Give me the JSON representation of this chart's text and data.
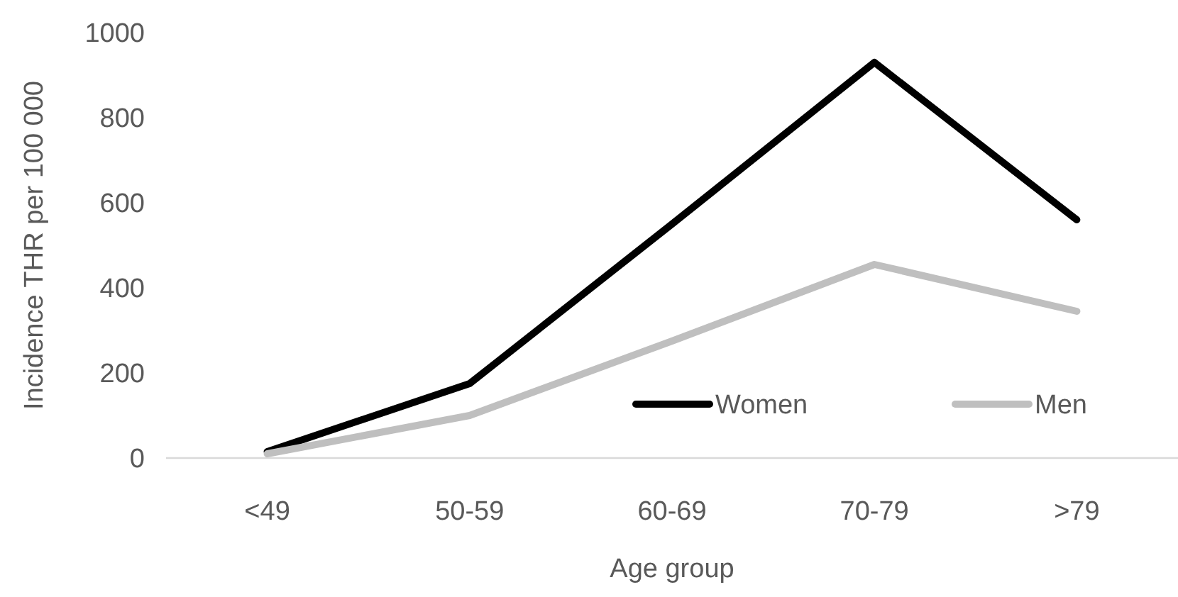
{
  "chart_data": {
    "type": "line",
    "xlabel": "Age group",
    "ylabel": "Incidence THR per 100 000",
    "categories": [
      "<49",
      "50-59",
      "60-69",
      "70-79",
      ">79"
    ],
    "series": [
      {
        "name": "Women",
        "color": "#000000",
        "values": [
          15,
          175,
          550,
          930,
          560
        ]
      },
      {
        "name": "Men",
        "color": "#bfbfbf",
        "values": [
          10,
          100,
          275,
          455,
          345
        ]
      }
    ],
    "ylim": [
      0,
      1000
    ],
    "yticks": [
      0,
      200,
      400,
      600,
      800,
      1000
    ],
    "grid": false,
    "legend": "bottom right",
    "marker": "none",
    "line_style": "solid"
  }
}
